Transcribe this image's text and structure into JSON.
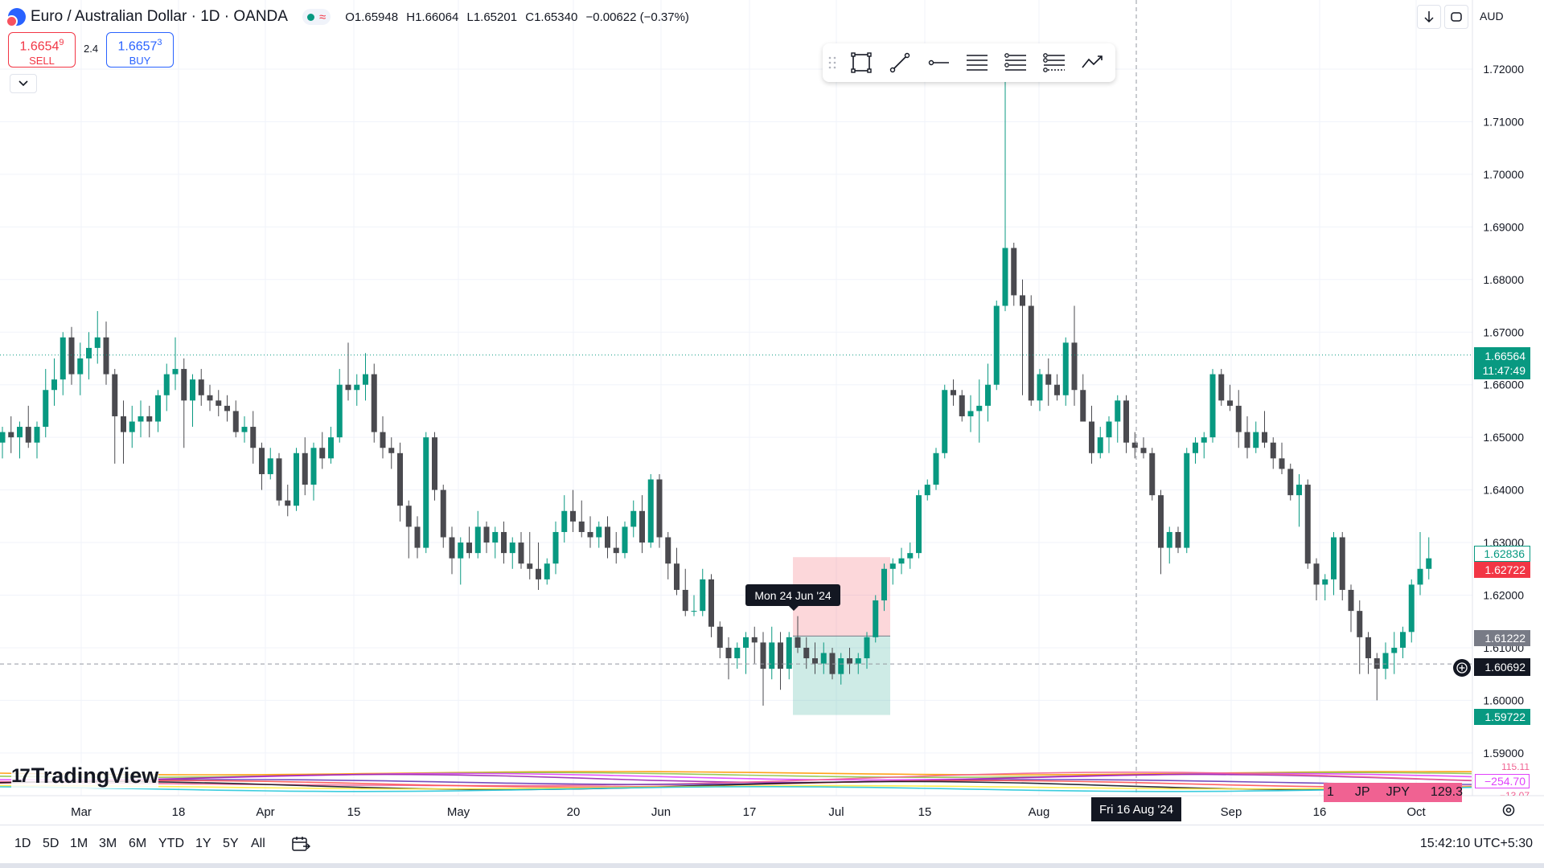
{
  "header": {
    "symbol_title": "Euro / Australian Dollar · 1D · OANDA",
    "ohlc": {
      "open": "O1.65948",
      "high": "H1.66064",
      "low": "L1.65201",
      "close": "C1.65340",
      "change": "−0.00622 (−0.37%)"
    }
  },
  "trade": {
    "sell_price": "1.6654",
    "sell_price_sup": "9",
    "sell_label": "SELL",
    "spread": "2.4",
    "buy_price": "1.6657",
    "buy_price_sup": "3",
    "buy_label": "BUY"
  },
  "top_right": {
    "currency": "AUD"
  },
  "price_scale": {
    "ticks": [
      "1.72000",
      "1.71000",
      "1.70000",
      "1.69000",
      "1.68000",
      "1.67000",
      "1.66000",
      "1.65000",
      "1.64000",
      "1.63000",
      "1.62000",
      "1.61000",
      "1.60000",
      "1.59000"
    ],
    "current_price": "1.66564",
    "countdown": "11:47:49",
    "label_upper_green": "1.62836",
    "label_red": "1.62722",
    "label_grey": "1.61222",
    "crosshair_price": "1.60692",
    "label_green_bottom": "1.59722",
    "indicator_value_1": "−254.70",
    "indicator_value_top": "115.11",
    "indicator_value_bottom": "−13.07"
  },
  "time_scale": {
    "labels": [
      "Mar",
      "18",
      "Apr",
      "15",
      "May",
      "20",
      "Jun",
      "17",
      "Jul",
      "15",
      "Aug",
      "Sep",
      "16",
      "Oct"
    ],
    "crosshair_date": "Fri 16 Aug '24"
  },
  "tooltip": {
    "date": "Mon 24 Jun '24"
  },
  "indicator_chip": {
    "a": "1",
    "b": "JP",
    "c": "JPY",
    "d": "129.3"
  },
  "logo": {
    "text": "TradingView"
  },
  "bottom": {
    "ranges": [
      "1D",
      "5D",
      "1M",
      "3M",
      "6M",
      "YTD",
      "1Y",
      "5Y",
      "All"
    ],
    "clock": "15:42:10 UTC+5:30"
  },
  "colors": {
    "up": "#089981",
    "down": "#4a4a4f",
    "sell": "#f23645",
    "buy": "#2962ff"
  },
  "chart_data": {
    "type": "candlestick",
    "title": "Euro / Australian Dollar · 1D · OANDA",
    "candles": [
      {
        "o": 1.649,
        "h": 1.652,
        "l": 1.646,
        "c": 1.651
      },
      {
        "o": 1.651,
        "h": 1.654,
        "l": 1.647,
        "c": 1.65
      },
      {
        "o": 1.65,
        "h": 1.653,
        "l": 1.646,
        "c": 1.652
      },
      {
        "o": 1.652,
        "h": 1.656,
        "l": 1.648,
        "c": 1.649
      },
      {
        "o": 1.649,
        "h": 1.653,
        "l": 1.646,
        "c": 1.652
      },
      {
        "o": 1.652,
        "h": 1.663,
        "l": 1.65,
        "c": 1.659
      },
      {
        "o": 1.659,
        "h": 1.665,
        "l": 1.656,
        "c": 1.661
      },
      {
        "o": 1.661,
        "h": 1.67,
        "l": 1.658,
        "c": 1.669
      },
      {
        "o": 1.669,
        "h": 1.671,
        "l": 1.66,
        "c": 1.662
      },
      {
        "o": 1.662,
        "h": 1.668,
        "l": 1.658,
        "c": 1.665
      },
      {
        "o": 1.665,
        "h": 1.67,
        "l": 1.661,
        "c": 1.667
      },
      {
        "o": 1.667,
        "h": 1.674,
        "l": 1.664,
        "c": 1.669
      },
      {
        "o": 1.669,
        "h": 1.672,
        "l": 1.66,
        "c": 1.662
      },
      {
        "o": 1.662,
        "h": 1.663,
        "l": 1.645,
        "c": 1.654
      },
      {
        "o": 1.654,
        "h": 1.657,
        "l": 1.645,
        "c": 1.651
      },
      {
        "o": 1.651,
        "h": 1.656,
        "l": 1.648,
        "c": 1.653
      },
      {
        "o": 1.653,
        "h": 1.657,
        "l": 1.65,
        "c": 1.654
      },
      {
        "o": 1.654,
        "h": 1.656,
        "l": 1.65,
        "c": 1.653
      },
      {
        "o": 1.653,
        "h": 1.659,
        "l": 1.651,
        "c": 1.658
      },
      {
        "o": 1.658,
        "h": 1.664,
        "l": 1.655,
        "c": 1.662
      },
      {
        "o": 1.662,
        "h": 1.669,
        "l": 1.659,
        "c": 1.663
      },
      {
        "o": 1.663,
        "h": 1.665,
        "l": 1.648,
        "c": 1.657
      },
      {
        "o": 1.657,
        "h": 1.662,
        "l": 1.652,
        "c": 1.661
      },
      {
        "o": 1.661,
        "h": 1.663,
        "l": 1.656,
        "c": 1.658
      },
      {
        "o": 1.658,
        "h": 1.66,
        "l": 1.655,
        "c": 1.657
      },
      {
        "o": 1.657,
        "h": 1.659,
        "l": 1.654,
        "c": 1.656
      },
      {
        "o": 1.656,
        "h": 1.658,
        "l": 1.653,
        "c": 1.655
      },
      {
        "o": 1.655,
        "h": 1.657,
        "l": 1.65,
        "c": 1.651
      },
      {
        "o": 1.651,
        "h": 1.654,
        "l": 1.649,
        "c": 1.652
      },
      {
        "o": 1.652,
        "h": 1.655,
        "l": 1.645,
        "c": 1.648
      },
      {
        "o": 1.648,
        "h": 1.649,
        "l": 1.64,
        "c": 1.643
      },
      {
        "o": 1.643,
        "h": 1.648,
        "l": 1.642,
        "c": 1.646
      },
      {
        "o": 1.646,
        "h": 1.647,
        "l": 1.637,
        "c": 1.638
      },
      {
        "o": 1.638,
        "h": 1.641,
        "l": 1.635,
        "c": 1.637
      },
      {
        "o": 1.637,
        "h": 1.648,
        "l": 1.636,
        "c": 1.647
      },
      {
        "o": 1.647,
        "h": 1.65,
        "l": 1.639,
        "c": 1.641
      },
      {
        "o": 1.641,
        "h": 1.649,
        "l": 1.638,
        "c": 1.648
      },
      {
        "o": 1.648,
        "h": 1.651,
        "l": 1.644,
        "c": 1.646
      },
      {
        "o": 1.646,
        "h": 1.652,
        "l": 1.645,
        "c": 1.65
      },
      {
        "o": 1.65,
        "h": 1.663,
        "l": 1.649,
        "c": 1.66
      },
      {
        "o": 1.66,
        "h": 1.668,
        "l": 1.657,
        "c": 1.659
      },
      {
        "o": 1.659,
        "h": 1.662,
        "l": 1.656,
        "c": 1.66
      },
      {
        "o": 1.66,
        "h": 1.666,
        "l": 1.657,
        "c": 1.662
      },
      {
        "o": 1.662,
        "h": 1.664,
        "l": 1.649,
        "c": 1.651
      },
      {
        "o": 1.651,
        "h": 1.654,
        "l": 1.646,
        "c": 1.648
      },
      {
        "o": 1.648,
        "h": 1.65,
        "l": 1.644,
        "c": 1.647
      },
      {
        "o": 1.647,
        "h": 1.649,
        "l": 1.634,
        "c": 1.637
      },
      {
        "o": 1.637,
        "h": 1.638,
        "l": 1.627,
        "c": 1.633
      },
      {
        "o": 1.633,
        "h": 1.635,
        "l": 1.627,
        "c": 1.629
      },
      {
        "o": 1.629,
        "h": 1.651,
        "l": 1.628,
        "c": 1.65
      },
      {
        "o": 1.65,
        "h": 1.651,
        "l": 1.638,
        "c": 1.64
      },
      {
        "o": 1.64,
        "h": 1.641,
        "l": 1.629,
        "c": 1.631
      },
      {
        "o": 1.631,
        "h": 1.633,
        "l": 1.624,
        "c": 1.627
      },
      {
        "o": 1.627,
        "h": 1.631,
        "l": 1.622,
        "c": 1.63
      },
      {
        "o": 1.63,
        "h": 1.633,
        "l": 1.627,
        "c": 1.628
      },
      {
        "o": 1.628,
        "h": 1.636,
        "l": 1.627,
        "c": 1.633
      },
      {
        "o": 1.633,
        "h": 1.634,
        "l": 1.628,
        "c": 1.63
      },
      {
        "o": 1.63,
        "h": 1.633,
        "l": 1.627,
        "c": 1.632
      },
      {
        "o": 1.632,
        "h": 1.634,
        "l": 1.626,
        "c": 1.628
      },
      {
        "o": 1.628,
        "h": 1.631,
        "l": 1.625,
        "c": 1.63
      },
      {
        "o": 1.63,
        "h": 1.632,
        "l": 1.625,
        "c": 1.626
      },
      {
        "o": 1.626,
        "h": 1.632,
        "l": 1.623,
        "c": 1.625
      },
      {
        "o": 1.625,
        "h": 1.63,
        "l": 1.621,
        "c": 1.623
      },
      {
        "o": 1.623,
        "h": 1.627,
        "l": 1.622,
        "c": 1.626
      },
      {
        "o": 1.626,
        "h": 1.634,
        "l": 1.624,
        "c": 1.632
      },
      {
        "o": 1.632,
        "h": 1.639,
        "l": 1.63,
        "c": 1.636
      },
      {
        "o": 1.636,
        "h": 1.64,
        "l": 1.632,
        "c": 1.634
      },
      {
        "o": 1.634,
        "h": 1.638,
        "l": 1.631,
        "c": 1.632
      },
      {
        "o": 1.632,
        "h": 1.635,
        "l": 1.629,
        "c": 1.631
      },
      {
        "o": 1.631,
        "h": 1.634,
        "l": 1.629,
        "c": 1.633
      },
      {
        "o": 1.633,
        "h": 1.635,
        "l": 1.627,
        "c": 1.629
      },
      {
        "o": 1.629,
        "h": 1.632,
        "l": 1.626,
        "c": 1.628
      },
      {
        "o": 1.628,
        "h": 1.634,
        "l": 1.627,
        "c": 1.633
      },
      {
        "o": 1.633,
        "h": 1.638,
        "l": 1.631,
        "c": 1.636
      },
      {
        "o": 1.636,
        "h": 1.639,
        "l": 1.628,
        "c": 1.63
      },
      {
        "o": 1.63,
        "h": 1.643,
        "l": 1.629,
        "c": 1.642
      },
      {
        "o": 1.642,
        "h": 1.643,
        "l": 1.629,
        "c": 1.631
      },
      {
        "o": 1.631,
        "h": 1.632,
        "l": 1.623,
        "c": 1.626
      },
      {
        "o": 1.626,
        "h": 1.629,
        "l": 1.62,
        "c": 1.621
      },
      {
        "o": 1.621,
        "h": 1.625,
        "l": 1.616,
        "c": 1.617
      },
      {
        "o": 1.617,
        "h": 1.62,
        "l": 1.616,
        "c": 1.617
      },
      {
        "o": 1.617,
        "h": 1.625,
        "l": 1.616,
        "c": 1.623
      },
      {
        "o": 1.623,
        "h": 1.624,
        "l": 1.612,
        "c": 1.614
      },
      {
        "o": 1.614,
        "h": 1.615,
        "l": 1.608,
        "c": 1.61
      },
      {
        "o": 1.61,
        "h": 1.612,
        "l": 1.604,
        "c": 1.608
      },
      {
        "o": 1.608,
        "h": 1.611,
        "l": 1.606,
        "c": 1.61
      },
      {
        "o": 1.61,
        "h": 1.613,
        "l": 1.605,
        "c": 1.612
      },
      {
        "o": 1.612,
        "h": 1.614,
        "l": 1.607,
        "c": 1.611
      },
      {
        "o": 1.611,
        "h": 1.613,
        "l": 1.599,
        "c": 1.606
      },
      {
        "o": 1.606,
        "h": 1.614,
        "l": 1.604,
        "c": 1.611
      },
      {
        "o": 1.611,
        "h": 1.613,
        "l": 1.602,
        "c": 1.606
      },
      {
        "o": 1.606,
        "h": 1.613,
        "l": 1.604,
        "c": 1.612
      },
      {
        "o": 1.612,
        "h": 1.616,
        "l": 1.609,
        "c": 1.61
      },
      {
        "o": 1.61,
        "h": 1.612,
        "l": 1.606,
        "c": 1.608
      },
      {
        "o": 1.608,
        "h": 1.611,
        "l": 1.605,
        "c": 1.607
      },
      {
        "o": 1.607,
        "h": 1.611,
        "l": 1.605,
        "c": 1.609
      },
      {
        "o": 1.609,
        "h": 1.61,
        "l": 1.604,
        "c": 1.605
      },
      {
        "o": 1.605,
        "h": 1.609,
        "l": 1.603,
        "c": 1.608
      },
      {
        "o": 1.608,
        "h": 1.61,
        "l": 1.605,
        "c": 1.607
      },
      {
        "o": 1.607,
        "h": 1.609,
        "l": 1.605,
        "c": 1.608
      },
      {
        "o": 1.608,
        "h": 1.613,
        "l": 1.606,
        "c": 1.612
      },
      {
        "o": 1.612,
        "h": 1.62,
        "l": 1.611,
        "c": 1.619
      },
      {
        "o": 1.619,
        "h": 1.626,
        "l": 1.617,
        "c": 1.625
      },
      {
        "o": 1.625,
        "h": 1.627,
        "l": 1.622,
        "c": 1.626
      },
      {
        "o": 1.626,
        "h": 1.629,
        "l": 1.624,
        "c": 1.627
      },
      {
        "o": 1.627,
        "h": 1.63,
        "l": 1.625,
        "c": 1.628
      },
      {
        "o": 1.628,
        "h": 1.64,
        "l": 1.627,
        "c": 1.639
      },
      {
        "o": 1.639,
        "h": 1.642,
        "l": 1.638,
        "c": 1.641
      },
      {
        "o": 1.641,
        "h": 1.648,
        "l": 1.64,
        "c": 1.647
      },
      {
        "o": 1.647,
        "h": 1.66,
        "l": 1.646,
        "c": 1.659
      },
      {
        "o": 1.659,
        "h": 1.661,
        "l": 1.656,
        "c": 1.658
      },
      {
        "o": 1.658,
        "h": 1.659,
        "l": 1.653,
        "c": 1.654
      },
      {
        "o": 1.654,
        "h": 1.658,
        "l": 1.651,
        "c": 1.655
      },
      {
        "o": 1.655,
        "h": 1.661,
        "l": 1.649,
        "c": 1.656
      },
      {
        "o": 1.656,
        "h": 1.664,
        "l": 1.653,
        "c": 1.66
      },
      {
        "o": 1.66,
        "h": 1.676,
        "l": 1.659,
        "c": 1.675
      },
      {
        "o": 1.675,
        "h": 1.718,
        "l": 1.674,
        "c": 1.686
      },
      {
        "o": 1.686,
        "h": 1.687,
        "l": 1.675,
        "c": 1.677
      },
      {
        "o": 1.677,
        "h": 1.68,
        "l": 1.658,
        "c": 1.675
      },
      {
        "o": 1.675,
        "h": 1.677,
        "l": 1.656,
        "c": 1.657
      },
      {
        "o": 1.657,
        "h": 1.663,
        "l": 1.655,
        "c": 1.662
      },
      {
        "o": 1.662,
        "h": 1.665,
        "l": 1.656,
        "c": 1.66
      },
      {
        "o": 1.66,
        "h": 1.662,
        "l": 1.657,
        "c": 1.658
      },
      {
        "o": 1.658,
        "h": 1.669,
        "l": 1.656,
        "c": 1.668
      },
      {
        "o": 1.668,
        "h": 1.675,
        "l": 1.656,
        "c": 1.659
      },
      {
        "o": 1.659,
        "h": 1.662,
        "l": 1.653,
        "c": 1.653
      },
      {
        "o": 1.653,
        "h": 1.656,
        "l": 1.645,
        "c": 1.647
      },
      {
        "o": 1.647,
        "h": 1.652,
        "l": 1.646,
        "c": 1.65
      },
      {
        "o": 1.65,
        "h": 1.654,
        "l": 1.647,
        "c": 1.653
      },
      {
        "o": 1.653,
        "h": 1.658,
        "l": 1.649,
        "c": 1.657
      },
      {
        "o": 1.657,
        "h": 1.658,
        "l": 1.647,
        "c": 1.649
      },
      {
        "o": 1.649,
        "h": 1.651,
        "l": 1.646,
        "c": 1.648
      },
      {
        "o": 1.648,
        "h": 1.65,
        "l": 1.646,
        "c": 1.647
      },
      {
        "o": 1.647,
        "h": 1.648,
        "l": 1.638,
        "c": 1.639
      },
      {
        "o": 1.639,
        "h": 1.64,
        "l": 1.624,
        "c": 1.629
      },
      {
        "o": 1.629,
        "h": 1.633,
        "l": 1.626,
        "c": 1.632
      },
      {
        "o": 1.632,
        "h": 1.633,
        "l": 1.628,
        "c": 1.629
      },
      {
        "o": 1.629,
        "h": 1.648,
        "l": 1.628,
        "c": 1.647
      },
      {
        "o": 1.647,
        "h": 1.65,
        "l": 1.645,
        "c": 1.649
      },
      {
        "o": 1.649,
        "h": 1.651,
        "l": 1.646,
        "c": 1.65
      },
      {
        "o": 1.65,
        "h": 1.663,
        "l": 1.649,
        "c": 1.662
      },
      {
        "o": 1.662,
        "h": 1.663,
        "l": 1.656,
        "c": 1.657
      },
      {
        "o": 1.657,
        "h": 1.66,
        "l": 1.655,
        "c": 1.656
      },
      {
        "o": 1.656,
        "h": 1.659,
        "l": 1.648,
        "c": 1.651
      },
      {
        "o": 1.651,
        "h": 1.654,
        "l": 1.646,
        "c": 1.648
      },
      {
        "o": 1.648,
        "h": 1.653,
        "l": 1.647,
        "c": 1.651
      },
      {
        "o": 1.651,
        "h": 1.655,
        "l": 1.648,
        "c": 1.649
      },
      {
        "o": 1.649,
        "h": 1.65,
        "l": 1.644,
        "c": 1.646
      },
      {
        "o": 1.646,
        "h": 1.649,
        "l": 1.643,
        "c": 1.644
      },
      {
        "o": 1.644,
        "h": 1.645,
        "l": 1.638,
        "c": 1.639
      },
      {
        "o": 1.639,
        "h": 1.643,
        "l": 1.633,
        "c": 1.641
      },
      {
        "o": 1.641,
        "h": 1.642,
        "l": 1.625,
        "c": 1.626
      },
      {
        "o": 1.626,
        "h": 1.627,
        "l": 1.619,
        "c": 1.622
      },
      {
        "o": 1.622,
        "h": 1.624,
        "l": 1.619,
        "c": 1.623
      },
      {
        "o": 1.623,
        "h": 1.632,
        "l": 1.62,
        "c": 1.631
      },
      {
        "o": 1.631,
        "h": 1.632,
        "l": 1.619,
        "c": 1.621
      },
      {
        "o": 1.621,
        "h": 1.622,
        "l": 1.613,
        "c": 1.617
      },
      {
        "o": 1.617,
        "h": 1.619,
        "l": 1.605,
        "c": 1.612
      },
      {
        "o": 1.612,
        "h": 1.613,
        "l": 1.605,
        "c": 1.608
      },
      {
        "o": 1.608,
        "h": 1.609,
        "l": 1.6,
        "c": 1.606
      },
      {
        "o": 1.606,
        "h": 1.611,
        "l": 1.604,
        "c": 1.609
      },
      {
        "o": 1.609,
        "h": 1.613,
        "l": 1.605,
        "c": 1.61
      },
      {
        "o": 1.61,
        "h": 1.614,
        "l": 1.608,
        "c": 1.613
      },
      {
        "o": 1.613,
        "h": 1.623,
        "l": 1.611,
        "c": 1.622
      },
      {
        "o": 1.622,
        "h": 1.632,
        "l": 1.62,
        "c": 1.625
      },
      {
        "o": 1.625,
        "h": 1.631,
        "l": 1.623,
        "c": 1.627
      }
    ],
    "ylim": [
      1.583,
      1.727
    ],
    "grid": true,
    "position_tool": {
      "entry": 1.61222,
      "stop": 1.62722,
      "target": 1.59722
    }
  }
}
